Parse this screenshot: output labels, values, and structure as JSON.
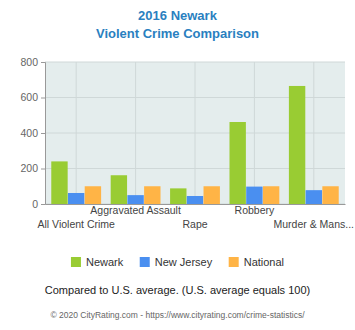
{
  "chart_data": {
    "type": "bar",
    "title": "2016 Newark",
    "subtitle": "Violent Crime Comparison",
    "categories": [
      "All Violent Crime",
      "Aggravated Assault",
      "Rape",
      "Robbery",
      "Murder & Mans..."
    ],
    "series": [
      {
        "name": "Newark",
        "color": "#99cc33",
        "values": [
          240,
          162,
          88,
          462,
          665
        ]
      },
      {
        "name": "New Jersey",
        "color": "#4a8ff0",
        "values": [
          62,
          50,
          45,
          98,
          78
        ]
      },
      {
        "name": "National",
        "color": "#ffb446",
        "values": [
          100,
          100,
          100,
          100,
          100
        ]
      }
    ],
    "ylim": [
      0,
      800
    ],
    "yticks": [
      0,
      200,
      400,
      600,
      800
    ],
    "grid": true,
    "legend": "bottom",
    "annotations": [
      "Compared to U.S. average. (U.S. average equals 100)",
      "© 2020 CityRating.com - https://www.cityrating.com/crime-statistics/"
    ]
  }
}
